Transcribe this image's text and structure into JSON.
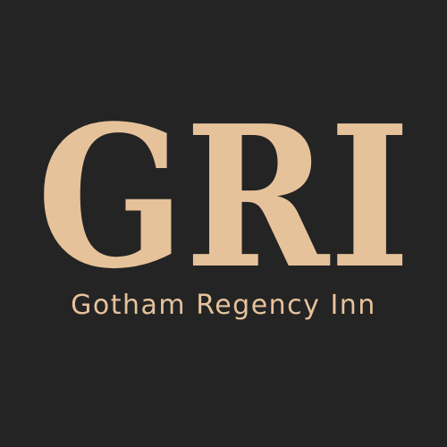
{
  "logo": {
    "monogram": "GRI",
    "name": "Gotham Regency Inn"
  },
  "colors": {
    "background": "#242424",
    "accent": "#e6c29b"
  }
}
